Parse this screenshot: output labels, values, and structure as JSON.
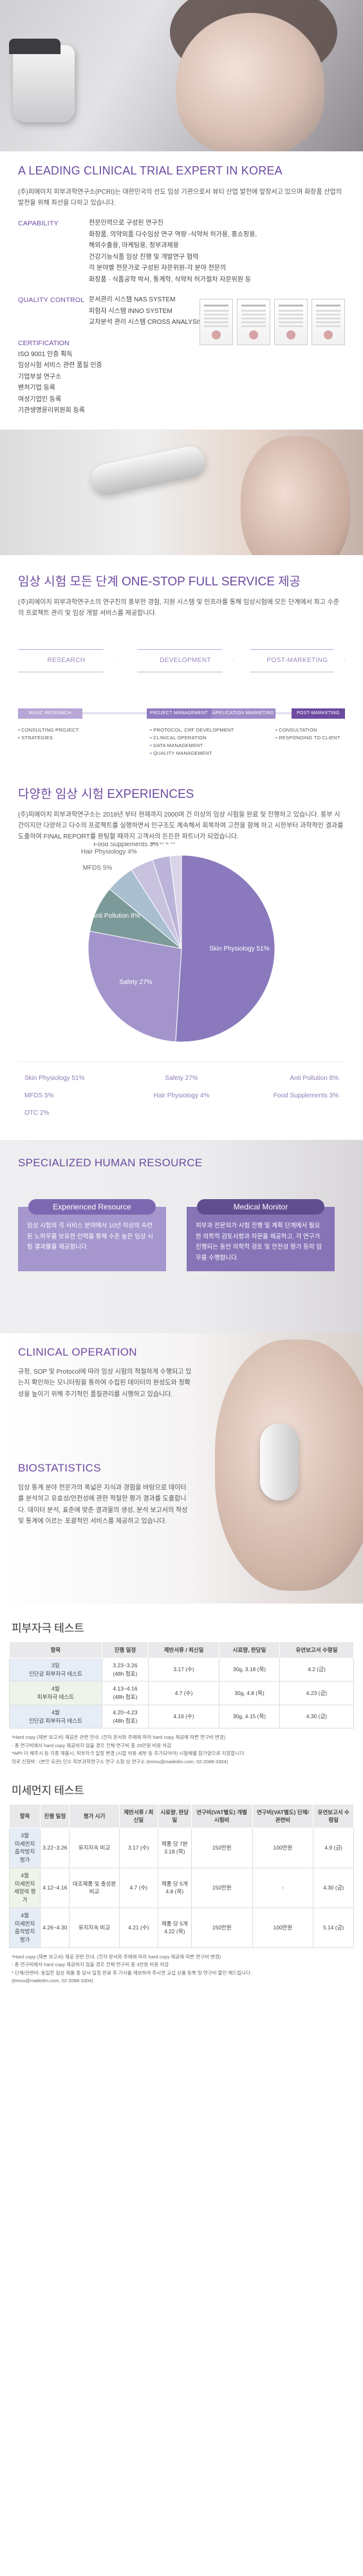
{
  "leading": {
    "title": "A LEADING CLINICAL TRIAL EXPERT IN KOREA",
    "intro": "(주)피에이치 피부과학연구소(PCRI)는 대한민국의 선도 임상 기관으로서 뷰티 산업 발전에 앞장서고 있으며 화장품 산업의 발전을 위해 최선을 다하고 있습니다.",
    "capability_label": "CAPABILITY",
    "capability_lines": [
      "전문인력으로 구성된 연구진",
      "화장품, 의약외품 다수임상 연구 역량 -식약처 허가용, 홍쇼핑용,",
      "해외수출용, 마케팅용, 정부과제용",
      "건강기능식품 임상 진행 및 개발연구 협력",
      "각 분야별 전문가로 구성된 자문위원-각 분야 전문의",
      "화장품 · 식품공학 박사, 통계학, 식약처 허가절차 자문위원 등"
    ],
    "qc_label": "QUALITY CONTROL",
    "qc_lines": [
      "문서관리 시스템 NAS SYSTEM",
      "피험자 시스템 INNO SYSTEM",
      "교차분석 관리 시스템 CROSS ANALYSIS SYSTEM"
    ],
    "cert_label": "CERTIFICATION",
    "cert_lines": [
      "ISO 9001 인증 획득",
      "임상시험 서비스 관련 품질 인증",
      "기업부설 연구소",
      "벤처기업 등록",
      "여성기업인 등록",
      "기관생명윤리위원회 등록"
    ]
  },
  "onestop": {
    "title": "임상 시험 모든 단계 ONE-STOP FULL SERVICE 제공",
    "desc": "(주)피에이치 피부과학연구소의 연구진의 풍부한 경험, 지원 시스템 및 인프라를 통해 임상시험에 모든 단계에서 최고 수준의 프로젝트 관리 및 임상 개발 서비스를 제공합니다.",
    "stages": [
      "RESEARCH",
      "DEVELOPMENT",
      "POST-MARKETING"
    ],
    "bars": [
      "BASIC RESEARCH",
      "PROJECT MANAGEMENT",
      "APPLICATION MARKETING",
      "POST-MARKETING"
    ],
    "col1": [
      "CONSULTING PROJECT",
      "STRATEGIES"
    ],
    "col2": [
      "PROTOCOL, CRF DEVELOPMENT",
      "CLINICAL OPERATION",
      "DATA MANAGEMENT",
      "QUALITY MANAGEMENT"
    ],
    "col3": [
      "CONSULTATION",
      "RESPONDING TO CLIENT"
    ]
  },
  "experiences": {
    "title": "다양한 임상 시험 EXPERIENCES",
    "desc": "(주)피에이치 피부과학연구소는 2018년 부터 현재까지 2000여 건 이상의 임상 시험을 완료 및 진행하고 있습니다. 풍부 시간이지만 다양하고 다수의 프로젝트를 실행하면서 인구조도 계속해서 회복하여 고전을 함께 하고 시한부터 과학적인 결과를 도출하여 FINAL REPORT를 완팅할 때까지 고객사의 든든한 파트너가 되었습니다."
  },
  "chart_data": {
    "type": "pie",
    "labels": [
      "Skin Physiology",
      "Safety",
      "Anti Pollution",
      "MFDS",
      "Hair Physiology",
      "Food Supplements",
      "OTC"
    ],
    "values": [
      51,
      27,
      8,
      5,
      4,
      3,
      2
    ],
    "colors": [
      "#8b79bd",
      "#a494cc",
      "#7d9a9a",
      "#a9bfd0",
      "#c9c2df",
      "#bbb3d8",
      "#d9d4ea"
    ],
    "label_texts": [
      "Skin Physiology 51%",
      "Safety 27%",
      "Anti Pollution 8%",
      "MFDS 5%",
      "Hair Physiology 4%",
      "Food Supplements 3%",
      "OTC 2%"
    ],
    "legend": [
      "Skin Physiology  51%",
      "Safety  27%",
      "Anti Pollution  8%",
      "MFDS  5%",
      "Hair Physiology  4%",
      "Food Supplements  3%",
      "OTC  2%"
    ]
  },
  "spec": {
    "title": "SPECIALIZED HUMAN RESOURCE",
    "box1_title": "Experienced Resource",
    "box1_body": "임상 시험의 각 서비스 분야에서 10년 이상의 숙련된 노하우를 보유한 인력을 통해 수준 높은 임상 시험 결과물을 제공합니다.",
    "box2_title": "Medical Monitor",
    "box2_body": "피부과 전문의가 시험 진행 및 계획 단계에서 필요한 의학적 검토사항과 자문을 제공하고, 각 연구가 진행되는 동안 의학적 검토 및 안전성 평가 등의 업무를 수행합니다.",
    "colors": {
      "box1_head": "#7c68b0",
      "box1_body": "#a596cd",
      "box2_head": "#5f4d8f",
      "box2_body": "#8674b7"
    }
  },
  "clinical": {
    "title1": "CLINICAL OPERATION",
    "body1": "규정, SOP 및 Protocol에 따라 임상 시험의 적절하게 수행되고 있는지 확인하는 모니터링을 통하여 수집된 데이터의 완성도와 정확성을 높이기 위해 주기적인 품질관리를 시행하고 있습니다.",
    "title2": "BIOSTATISTICS",
    "body2": "임상 통계 분야 전문가의 폭넓은 지식과 경험을 바탕으로 데이터를 분석하고 유효성/안전성에 관한 적절한 평가 결과를 도출합니다. 데이터 분석, 표준에 맞춘 결과물의 생성, 분석 보고서의 작성 및 통계에 이르는 포괄적인 서비스를 제공하고 있습니다."
  },
  "t1": {
    "title": "피부자극 테스트",
    "headers": [
      "항목",
      "진행 일정",
      "제반서류 / 최신일",
      "시료량, 판당일",
      "유연보고서 수령일"
    ],
    "rows": [
      [
        "3일\n인단감 피부자극 테스트",
        "3.23~3.26\n(48h 첩포)",
        "3.17 (수)",
        "30g, 3.18 (목)",
        "4.2 (금)"
      ],
      [
        "4월\n피부자극 테스트",
        "4.13~4.16\n(48h 첩포)",
        "4.7 (수)",
        "30g, 4.8 (목)",
        "4.23 (금)"
      ],
      [
        "4월\n인단감 피부자극 테스트",
        "4.20~4.23\n(48h 첩포)",
        "4.16 (수)",
        "30g, 4.15 (목)",
        "4.30 (금)"
      ]
    ],
    "notes": [
      "*Hard copy (제본 보고서) 제공은 관련 안내. (전자 문서와 주에에 따라 hard copy 제공에 따른 연구비 변경)",
      "- 총 연구비에서 hard copy 제공하지 않을 경우 전체 연구비 중 20만원 비용 차감",
      "*WPI 더 해주시 등 각종 제품시, 피부자극 일정 변경 (시합 허용 세부 등 추가되어야) 시험해별 참가양으로 지정합니다.",
      "의로 신청바 : (본인 요관) 인수 피부과학연구소 연구 소장 상 연구소 (tmmu@mailedm.com, 02-2088-3304)"
    ]
  },
  "t2": {
    "title": "미세먼지 테스트",
    "headers": [
      "항목",
      "진행 일정",
      "평가 시기",
      "제반서류 / 최신일",
      "시료량, 판당일",
      "연구비(VAT별도) 개별 시험비",
      "연구비(VAT별도) 단체/관련비",
      "유연보고서 수령일"
    ],
    "rows": [
      [
        "3월\n미세먼지\n흡착방지 평가",
        "3.22~3.26",
        "유지지속 비교",
        "3.17 (수)",
        "제품 당 7본\n3.18 (목)",
        "150만원",
        "100만원",
        "4.9 (금)"
      ],
      [
        "4월\n미세먼지\n세정력 평가",
        "4.12~4.16",
        "대조제품 및 출성분 비교",
        "4.7 (수)",
        "제품 당 5개\n4.8 (목)",
        "150만원",
        "-",
        "4.30 (금)"
      ],
      [
        "4월\n미세먼지\n흡착방지 평가",
        "4.26~4.30",
        "유지지속 비교",
        "4.21 (수)",
        "제품 당 5개\n4.22 (목)",
        "150만원",
        "100만원",
        "5.14 (금)"
      ]
    ],
    "notes": [
      "*Hard copy (제본 보고서) 제공 관련 안내. (전자 문서와 주에에 따라 hard copy 제공에 따른 연구비 변경)",
      "- 총 연구비에서 hard copy 제공하지 않을 경우 전체 연구비 중 3만원 비용 차감",
      "* 단체/관련비: 동일한 임상 제품 중 당사 일정 완료 후 기사를 제보하여 주시면 교섭 상품 등록 및 연구비 할인 해드립니다.",
      "(tmmu@mailedm.com, 02-2088-3304)"
    ]
  }
}
